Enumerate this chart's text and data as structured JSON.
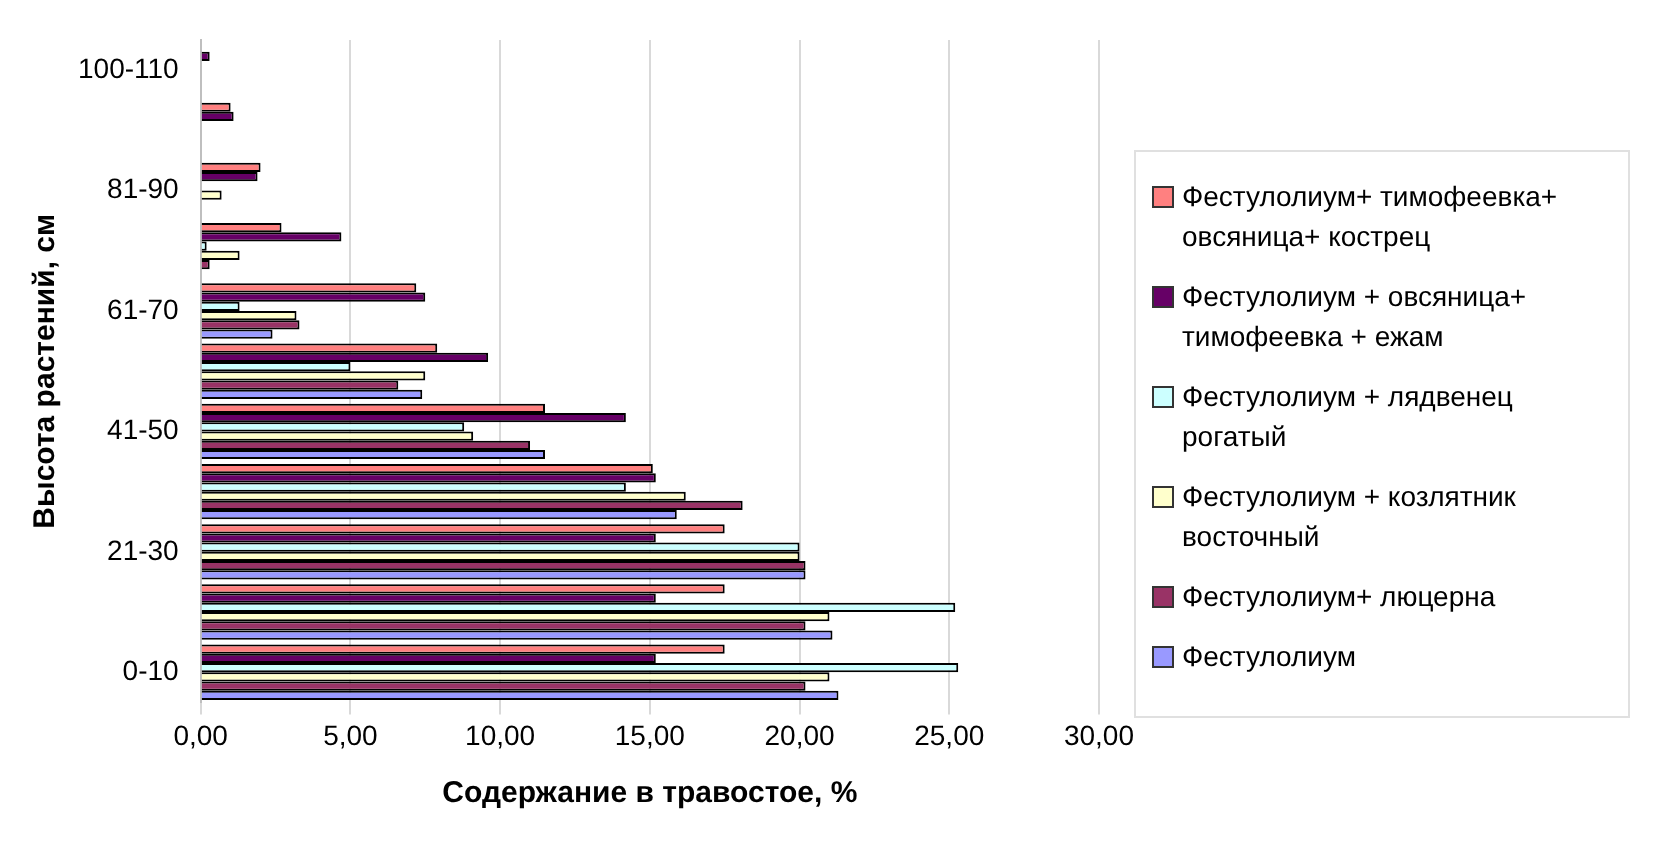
{
  "chart_data": {
    "type": "bar",
    "orientation": "horizontal",
    "xlabel": "Содержание в травостое, %",
    "ylabel": "Высота растений, см",
    "categories": [
      "100-110",
      null,
      "81-90",
      null,
      "61-70",
      null,
      "41-50",
      null,
      "21-30",
      null,
      "0-10"
    ],
    "xlim": [
      0,
      30
    ],
    "xticks": [
      {
        "value": 0,
        "label": "0,00"
      },
      {
        "value": 5,
        "label": "5,00"
      },
      {
        "value": 10,
        "label": "10,00"
      },
      {
        "value": 15,
        "label": "15,00"
      },
      {
        "value": 20,
        "label": "20,00"
      },
      {
        "value": 25,
        "label": "25,00"
      },
      {
        "value": 30,
        "label": "30,00"
      }
    ],
    "grid": "x",
    "legend": "right",
    "series": [
      {
        "name": "Фестулолиум+ тимофеевка+ овсяница+ кострец",
        "color": "#ff8080",
        "values": [
          null,
          1.0,
          2.0,
          2.7,
          7.2,
          7.9,
          11.5,
          15.1,
          17.5,
          17.5,
          17.5
        ]
      },
      {
        "name": "Фестулолиум + овсяница+ тимофеевка + ежам",
        "color": "#660066",
        "values": [
          0.3,
          1.1,
          1.9,
          4.7,
          7.5,
          9.6,
          14.2,
          15.2,
          15.2,
          15.2,
          15.2
        ]
      },
      {
        "name": "Фестулолиум + лядвенец рогатый",
        "color": "#ccffff",
        "values": [
          0,
          0,
          0,
          0.2,
          1.3,
          5.0,
          8.8,
          14.2,
          20.0,
          25.2,
          25.3
        ]
      },
      {
        "name": "Фестулолиум + козлятник восточный",
        "color": "#ffffcc",
        "values": [
          0,
          0,
          0.7,
          1.3,
          3.2,
          7.5,
          9.1,
          16.2,
          20.0,
          21.0,
          21.0
        ]
      },
      {
        "name": "Фестулолиум+ люцерна",
        "color": "#993366",
        "values": [
          0,
          0,
          0,
          0.3,
          3.3,
          6.6,
          11.0,
          18.1,
          20.2,
          20.2,
          20.2
        ]
      },
      {
        "name": "Фестулолиум",
        "color": "#9999ff",
        "values": [
          0,
          0,
          0,
          0,
          2.4,
          7.4,
          11.5,
          15.9,
          20.2,
          21.1,
          21.3
        ]
      }
    ]
  }
}
